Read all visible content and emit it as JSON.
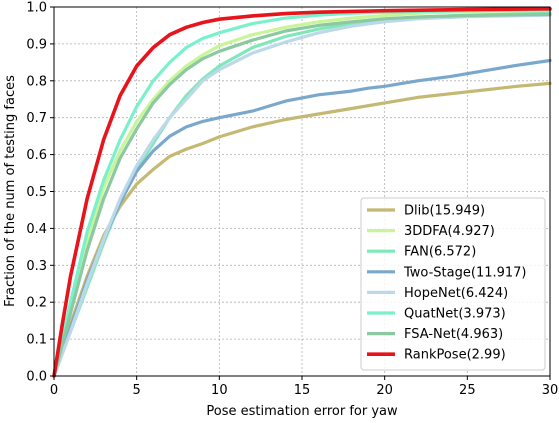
{
  "chart_data": {
    "type": "line",
    "title": "",
    "xlabel": "Pose estimation error for yaw",
    "ylabel": "Fraction of the num of testing faces",
    "xlim": [
      0,
      30
    ],
    "ylim": [
      0,
      1.0
    ],
    "xticks": [
      0,
      5,
      10,
      15,
      20,
      25,
      30
    ],
    "yticks": [
      0.0,
      0.1,
      0.2,
      0.3,
      0.4,
      0.5,
      0.6,
      0.7,
      0.8,
      0.9,
      1.0
    ],
    "grid": true,
    "legend_position": "lower-right",
    "series": [
      {
        "name": "Dlib(15.949)",
        "color": "#c4b872",
        "width": 3.2,
        "points": [
          [
            0,
            0
          ],
          [
            1,
            0.14
          ],
          [
            2,
            0.27
          ],
          [
            3,
            0.38
          ],
          [
            4,
            0.46
          ],
          [
            5,
            0.52
          ],
          [
            6,
            0.56
          ],
          [
            7,
            0.595
          ],
          [
            8,
            0.615
          ],
          [
            9,
            0.63
          ],
          [
            10,
            0.648
          ],
          [
            12,
            0.675
          ],
          [
            14,
            0.695
          ],
          [
            16,
            0.71
          ],
          [
            18,
            0.725
          ],
          [
            20,
            0.74
          ],
          [
            22,
            0.755
          ],
          [
            24,
            0.765
          ],
          [
            26,
            0.775
          ],
          [
            28,
            0.785
          ],
          [
            30,
            0.793
          ]
        ]
      },
      {
        "name": "3DDFA(4.927)",
        "color": "#c8f59a",
        "width": 3.2,
        "points": [
          [
            0,
            0
          ],
          [
            1,
            0.18
          ],
          [
            2,
            0.36
          ],
          [
            3,
            0.51
          ],
          [
            4,
            0.61
          ],
          [
            5,
            0.69
          ],
          [
            6,
            0.75
          ],
          [
            7,
            0.8
          ],
          [
            8,
            0.84
          ],
          [
            9,
            0.87
          ],
          [
            10,
            0.895
          ],
          [
            12,
            0.925
          ],
          [
            14,
            0.945
          ],
          [
            16,
            0.96
          ],
          [
            18,
            0.97
          ],
          [
            20,
            0.977
          ],
          [
            22,
            0.983
          ],
          [
            25,
            0.988
          ],
          [
            30,
            0.99
          ]
        ]
      },
      {
        "name": "FAN(6.572)",
        "color": "#7fe8b8",
        "width": 3.2,
        "points": [
          [
            0,
            0
          ],
          [
            1,
            0.12
          ],
          [
            2,
            0.24
          ],
          [
            3,
            0.36
          ],
          [
            4,
            0.47
          ],
          [
            5,
            0.56
          ],
          [
            6,
            0.63
          ],
          [
            7,
            0.7
          ],
          [
            8,
            0.76
          ],
          [
            9,
            0.805
          ],
          [
            10,
            0.84
          ],
          [
            12,
            0.89
          ],
          [
            14,
            0.92
          ],
          [
            16,
            0.94
          ],
          [
            18,
            0.955
          ],
          [
            20,
            0.965
          ],
          [
            22,
            0.972
          ],
          [
            25,
            0.978
          ],
          [
            30,
            0.983
          ]
        ]
      },
      {
        "name": "Two-Stage(11.917)",
        "color": "#7aa8cc",
        "width": 3.2,
        "points": [
          [
            0,
            0
          ],
          [
            1,
            0.13
          ],
          [
            2,
            0.26
          ],
          [
            3,
            0.37
          ],
          [
            4,
            0.47
          ],
          [
            5,
            0.555
          ],
          [
            6,
            0.61
          ],
          [
            7,
            0.65
          ],
          [
            8,
            0.675
          ],
          [
            9,
            0.69
          ],
          [
            10,
            0.7
          ],
          [
            12,
            0.718
          ],
          [
            14,
            0.745
          ],
          [
            16,
            0.762
          ],
          [
            18,
            0.772
          ],
          [
            19,
            0.78
          ],
          [
            20,
            0.785
          ],
          [
            22,
            0.8
          ],
          [
            24,
            0.812
          ],
          [
            26,
            0.827
          ],
          [
            28,
            0.842
          ],
          [
            30,
            0.855
          ]
        ]
      },
      {
        "name": "HopeNet(6.424)",
        "color": "#bcd9ea",
        "width": 3.2,
        "points": [
          [
            0,
            0
          ],
          [
            1,
            0.12
          ],
          [
            2,
            0.25
          ],
          [
            3,
            0.37
          ],
          [
            4,
            0.48
          ],
          [
            5,
            0.57
          ],
          [
            6,
            0.64
          ],
          [
            7,
            0.7
          ],
          [
            8,
            0.75
          ],
          [
            9,
            0.8
          ],
          [
            10,
            0.83
          ],
          [
            12,
            0.875
          ],
          [
            14,
            0.905
          ],
          [
            16,
            0.93
          ],
          [
            18,
            0.948
          ],
          [
            20,
            0.96
          ],
          [
            22,
            0.968
          ],
          [
            25,
            0.974
          ],
          [
            30,
            0.978
          ]
        ]
      },
      {
        "name": "QuatNet(3.973)",
        "color": "#7af0cc",
        "width": 3.2,
        "points": [
          [
            0,
            0
          ],
          [
            1,
            0.2
          ],
          [
            2,
            0.39
          ],
          [
            3,
            0.53
          ],
          [
            4,
            0.64
          ],
          [
            5,
            0.73
          ],
          [
            6,
            0.8
          ],
          [
            7,
            0.85
          ],
          [
            8,
            0.89
          ],
          [
            9,
            0.915
          ],
          [
            10,
            0.93
          ],
          [
            12,
            0.955
          ],
          [
            14,
            0.97
          ],
          [
            16,
            0.978
          ],
          [
            18,
            0.983
          ],
          [
            20,
            0.986
          ],
          [
            25,
            0.99
          ],
          [
            30,
            0.992
          ]
        ]
      },
      {
        "name": "FSA-Net(4.963)",
        "color": "#8cc8a0",
        "width": 3.2,
        "points": [
          [
            0,
            0
          ],
          [
            1,
            0.17
          ],
          [
            2,
            0.34
          ],
          [
            3,
            0.48
          ],
          [
            4,
            0.59
          ],
          [
            5,
            0.67
          ],
          [
            6,
            0.74
          ],
          [
            7,
            0.79
          ],
          [
            8,
            0.83
          ],
          [
            9,
            0.86
          ],
          [
            10,
            0.88
          ],
          [
            12,
            0.91
          ],
          [
            14,
            0.935
          ],
          [
            16,
            0.95
          ],
          [
            18,
            0.96
          ],
          [
            20,
            0.968
          ],
          [
            22,
            0.973
          ],
          [
            25,
            0.977
          ],
          [
            30,
            0.98
          ]
        ]
      },
      {
        "name": "RankPose(2.99)",
        "color": "#e8141c",
        "width": 3.6,
        "points": [
          [
            0,
            0
          ],
          [
            0.5,
            0.14
          ],
          [
            1,
            0.27
          ],
          [
            2,
            0.48
          ],
          [
            3,
            0.64
          ],
          [
            4,
            0.76
          ],
          [
            5,
            0.84
          ],
          [
            6,
            0.89
          ],
          [
            7,
            0.925
          ],
          [
            8,
            0.945
          ],
          [
            9,
            0.958
          ],
          [
            10,
            0.967
          ],
          [
            12,
            0.976
          ],
          [
            14,
            0.982
          ],
          [
            16,
            0.986
          ],
          [
            18,
            0.988
          ],
          [
            20,
            0.99
          ],
          [
            25,
            0.993
          ],
          [
            30,
            0.995
          ]
        ]
      }
    ]
  }
}
